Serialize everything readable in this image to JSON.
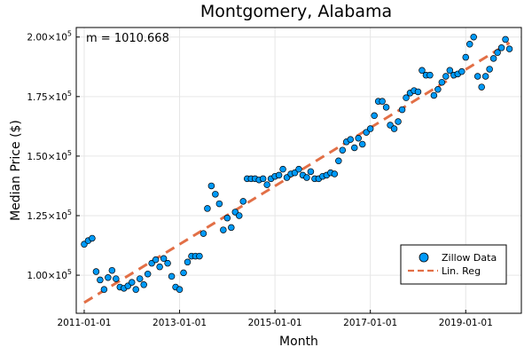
{
  "chart_data": {
    "type": "scatter",
    "title": "Montgomery, Alabama",
    "xlabel": "Month",
    "ylabel": "Median Price ($)",
    "x_ticks": [
      "2011-01-01",
      "2013-01-01",
      "2015-01-01",
      "2017-01-01",
      "2019-01-01"
    ],
    "y_ticks": [
      {
        "value": 100000,
        "mantissa": "1.00×10",
        "exp": "5"
      },
      {
        "value": 125000,
        "mantissa": "1.25×10",
        "exp": "5"
      },
      {
        "value": 150000,
        "mantissa": "1.50×10",
        "exp": "5"
      },
      {
        "value": 175000,
        "mantissa": "1.75×10",
        "exp": "5"
      },
      {
        "value": 200000,
        "mantissa": "2.00×10",
        "exp": "5"
      }
    ],
    "xlim": [
      "2010-11-01",
      "2020-03-01"
    ],
    "ylim": [
      84000,
      204000
    ],
    "grid": true,
    "legend_position": "bottom-right",
    "annotation": "m = 1010.668",
    "colors": {
      "scatter": "#009AF9",
      "regression": "#E26F46"
    },
    "series": [
      {
        "name": "Zillow Data",
        "type": "scatter",
        "x": [
          "2011-01",
          "2011-02",
          "2011-03",
          "2011-04",
          "2011-05",
          "2011-06",
          "2011-07",
          "2011-08",
          "2011-09",
          "2011-10",
          "2011-11",
          "2011-12",
          "2012-01",
          "2012-02",
          "2012-03",
          "2012-04",
          "2012-05",
          "2012-06",
          "2012-07",
          "2012-08",
          "2012-09",
          "2012-10",
          "2012-11",
          "2012-12",
          "2013-01",
          "2013-02",
          "2013-03",
          "2013-04",
          "2013-05",
          "2013-06",
          "2013-07",
          "2013-08",
          "2013-09",
          "2013-10",
          "2013-11",
          "2013-12",
          "2014-01",
          "2014-02",
          "2014-03",
          "2014-04",
          "2014-05",
          "2014-06",
          "2014-07",
          "2014-08",
          "2014-09",
          "2014-10",
          "2014-11",
          "2014-12",
          "2015-01",
          "2015-02",
          "2015-03",
          "2015-04",
          "2015-05",
          "2015-06",
          "2015-07",
          "2015-08",
          "2015-09",
          "2015-10",
          "2015-11",
          "2015-12",
          "2016-01",
          "2016-02",
          "2016-03",
          "2016-04",
          "2016-05",
          "2016-06",
          "2016-07",
          "2016-08",
          "2016-09",
          "2016-10",
          "2016-11",
          "2016-12",
          "2017-01",
          "2017-02",
          "2017-03",
          "2017-04",
          "2017-05",
          "2017-06",
          "2017-07",
          "2017-08",
          "2017-09",
          "2017-10",
          "2017-11",
          "2017-12",
          "2018-01",
          "2018-02",
          "2018-03",
          "2018-04",
          "2018-05",
          "2018-06",
          "2018-07",
          "2018-08",
          "2018-09",
          "2018-10",
          "2018-11",
          "2018-12",
          "2019-01",
          "2019-02",
          "2019-03",
          "2019-04",
          "2019-05",
          "2019-06",
          "2019-07",
          "2019-08",
          "2019-09",
          "2019-10",
          "2019-11",
          "2019-12"
        ],
        "y": [
          113000,
          114500,
          115500,
          101500,
          98000,
          94000,
          99000,
          102000,
          98500,
          95000,
          94500,
          95500,
          97000,
          94000,
          98500,
          96000,
          100500,
          105000,
          106500,
          103500,
          107000,
          105000,
          99500,
          95000,
          94000,
          101000,
          105500,
          108000,
          108000,
          108000,
          117500,
          128000,
          137500,
          134000,
          130000,
          119000,
          124000,
          120000,
          126500,
          125000,
          131000,
          140500,
          140500,
          140500,
          140000,
          140500,
          138000,
          140500,
          141500,
          142000,
          144500,
          141000,
          142500,
          143000,
          144500,
          142000,
          141000,
          143500,
          140500,
          140500,
          141500,
          142000,
          143000,
          142500,
          148000,
          152500,
          156000,
          157000,
          153500,
          157500,
          155000,
          160000,
          161500,
          167000,
          173000,
          173000,
          170500,
          163000,
          161500,
          164500,
          169500,
          174500,
          176500,
          177500,
          177000,
          186000,
          184000,
          184000,
          175500,
          178000,
          181000,
          183500,
          186000,
          184000,
          184500,
          185500,
          191500,
          197000,
          200000,
          183500,
          179000,
          183500,
          186500,
          191000,
          193500,
          195500,
          199000,
          195000
        ]
      },
      {
        "name": "Lin. Reg",
        "type": "line",
        "x": [
          "2011-01-01",
          "2019-12-01"
        ],
        "y": [
          88500,
          197600
        ]
      }
    ]
  }
}
